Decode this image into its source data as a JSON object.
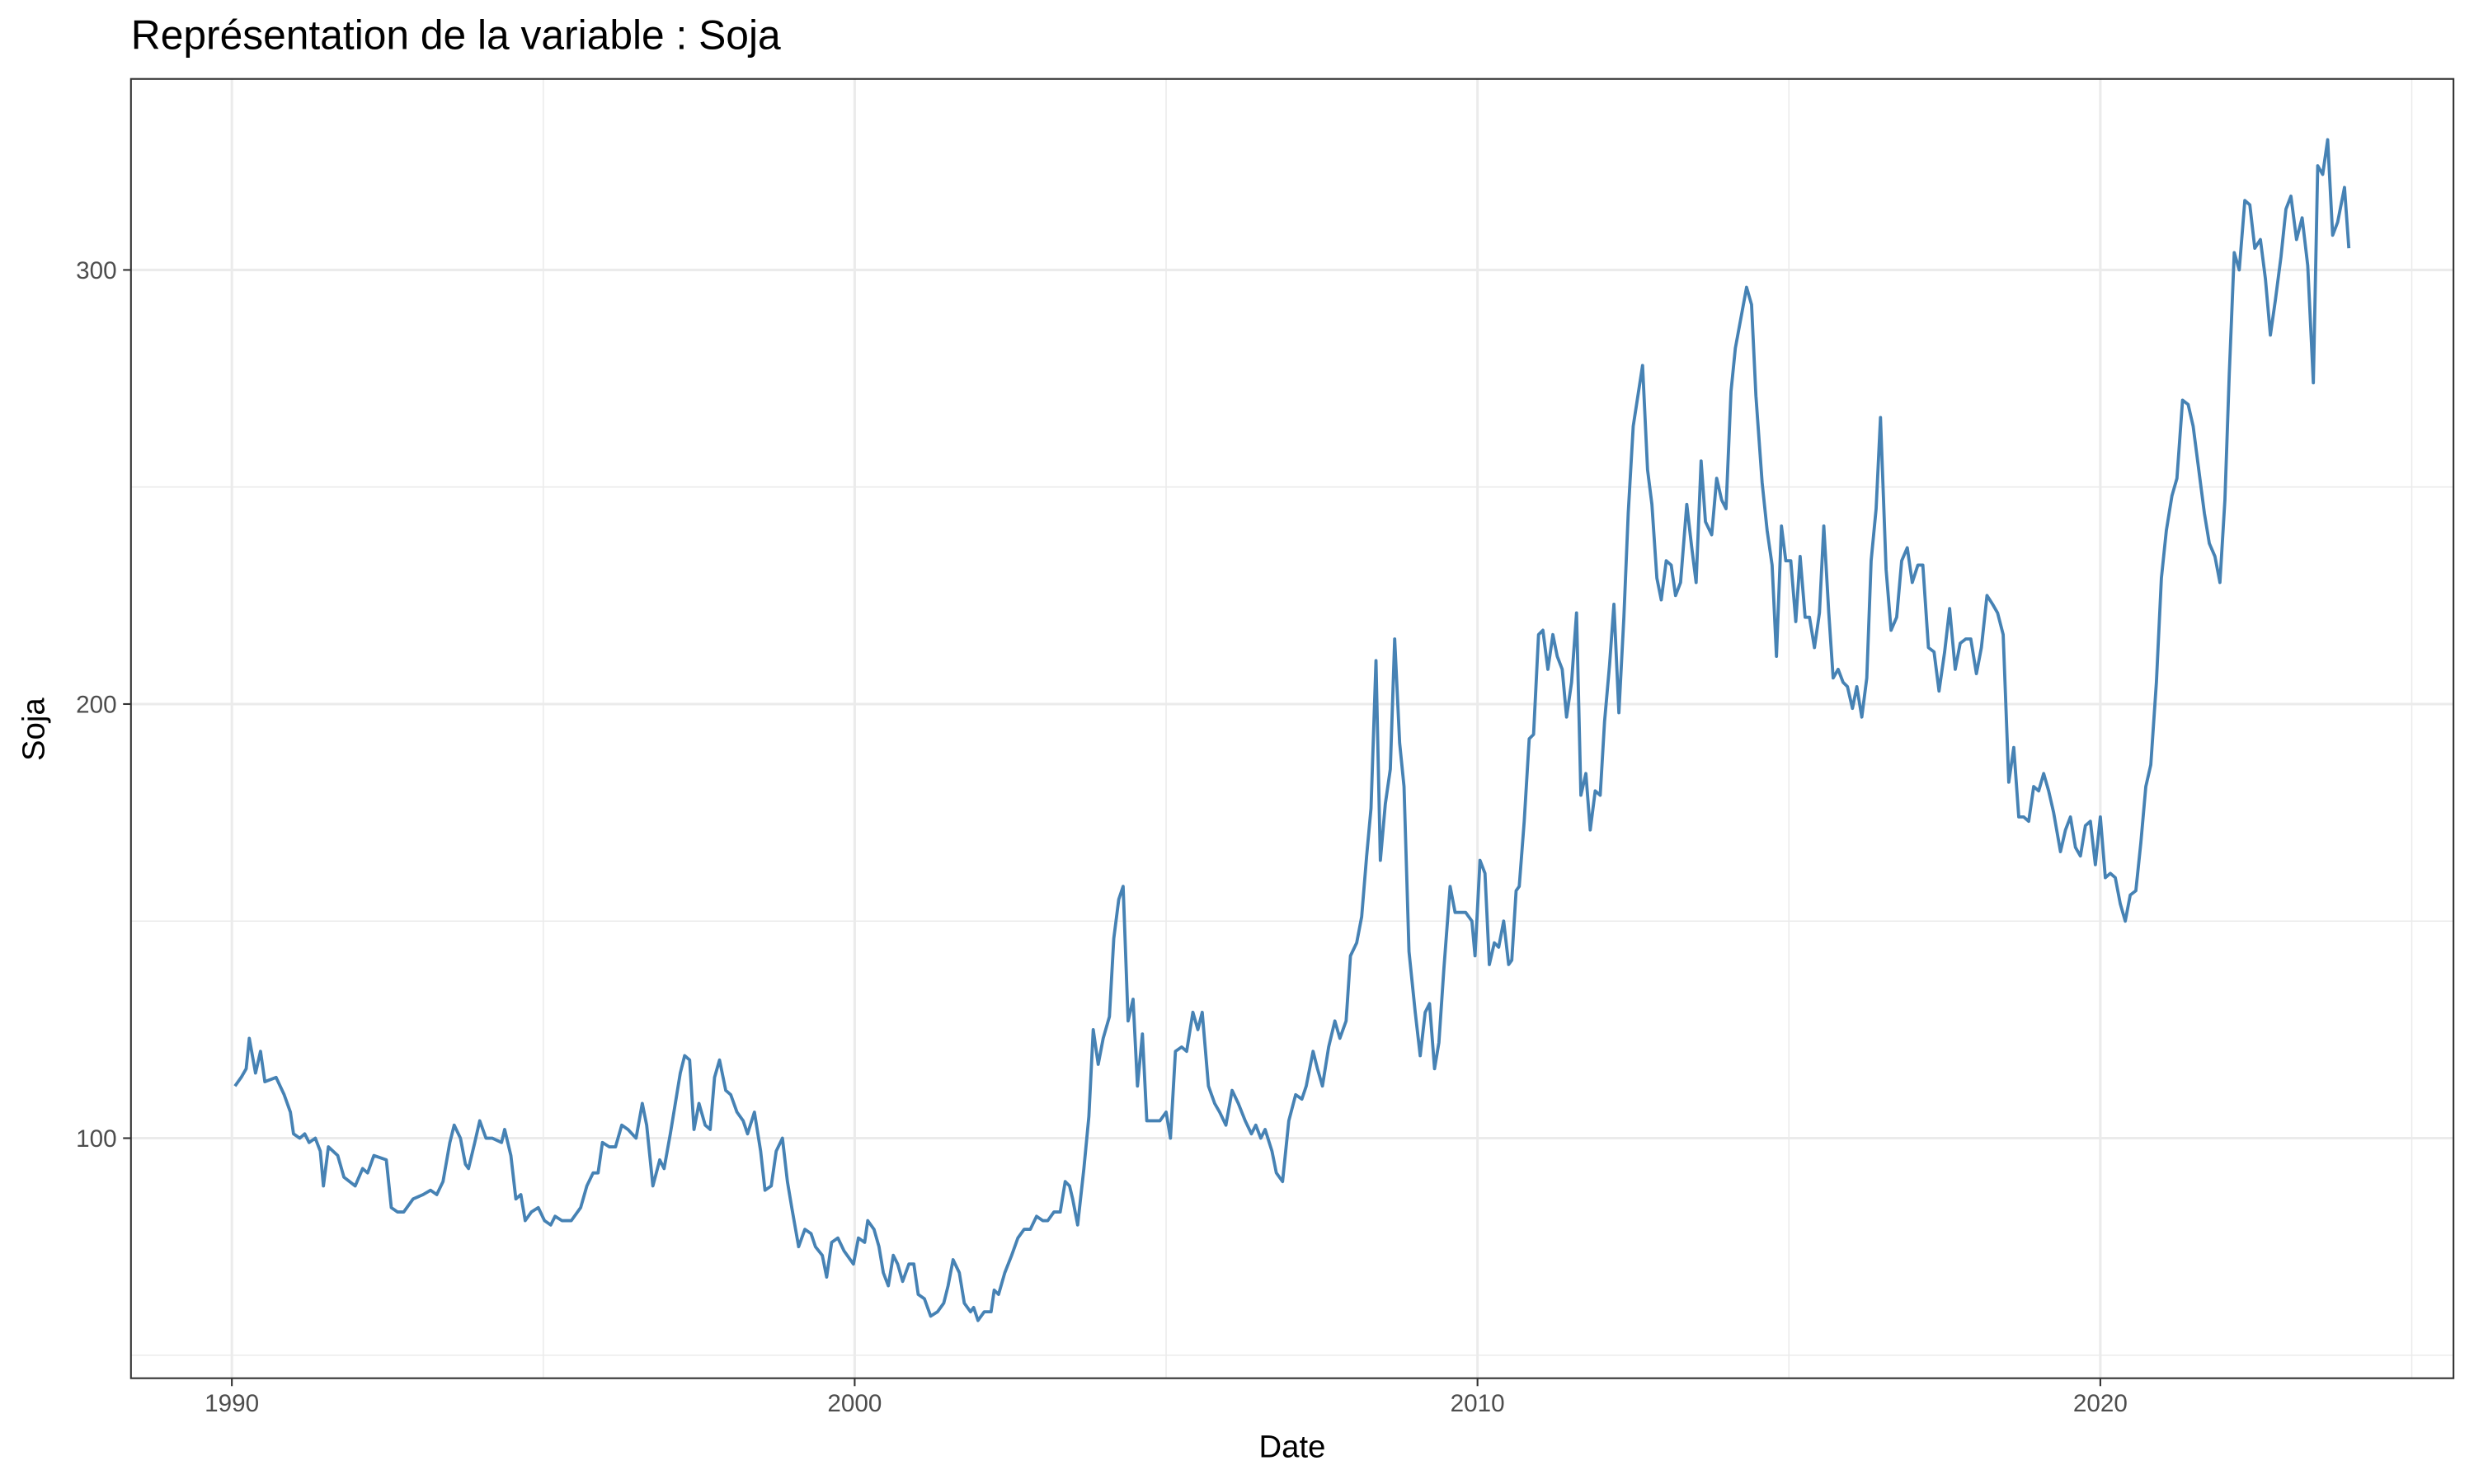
{
  "chart_data": {
    "type": "line",
    "title": "Représentation de la variable :  Soja",
    "xlabel": "Date",
    "ylabel": "Soja",
    "color": "#4682b4",
    "xlim": [
      1988.38,
      2025.67
    ],
    "xticks": [
      1990,
      2000,
      2010,
      2020
    ],
    "xminorticks": [
      1995,
      2005,
      2015,
      2025
    ],
    "ylim": [
      44.7,
      344
    ],
    "yticks": [
      100,
      200,
      300
    ],
    "yminorticks": [
      50,
      150,
      250
    ],
    "grid": true,
    "x": [
      1990.05,
      1990.15,
      1990.23,
      1990.28,
      1990.38,
      1990.46,
      1990.53,
      1990.71,
      1990.84,
      1990.94,
      1990.99,
      1991.09,
      1991.17,
      1991.24,
      1991.34,
      1991.42,
      1991.47,
      1991.55,
      1991.7,
      1991.8,
      1991.98,
      1992.1,
      1992.18,
      1992.28,
      1992.48,
      1992.56,
      1992.66,
      1992.76,
      1992.91,
      1993.07,
      1993.19,
      1993.29,
      1993.39,
      1993.5,
      1993.57,
      1993.67,
      1993.75,
      1993.8,
      1993.9,
      1993.98,
      1994.08,
      1994.18,
      1994.33,
      1994.38,
      1994.48,
      1994.56,
      1994.64,
      1994.71,
      1994.81,
      1994.92,
      1995.02,
      1995.12,
      1995.19,
      1995.3,
      1995.45,
      1995.6,
      1995.7,
      1995.8,
      1995.88,
      1995.95,
      1996.06,
      1996.16,
      1996.26,
      1996.36,
      1996.49,
      1996.59,
      1996.66,
      1996.76,
      1996.87,
      1996.94,
      1997.04,
      1997.12,
      1997.2,
      1997.27,
      1997.35,
      1997.42,
      1997.5,
      1997.6,
      1997.68,
      1997.75,
      1997.83,
      1997.93,
      1998.01,
      1998.11,
      1998.21,
      1998.28,
      1998.39,
      1998.49,
      1998.56,
      1998.66,
      1998.74,
      1998.84,
      1998.92,
      1998.99,
      1999.1,
      1999.2,
      1999.3,
      1999.37,
      1999.48,
      1999.55,
      1999.63,
      1999.73,
      1999.83,
      1999.93,
      1999.98,
      2000.06,
      2000.16,
      2000.21,
      2000.31,
      2000.39,
      2000.46,
      2000.54,
      2000.62,
      2000.69,
      2000.77,
      2000.87,
      2000.95,
      2001.02,
      2001.12,
      2001.22,
      2001.33,
      2001.43,
      2001.5,
      2001.58,
      2001.68,
      2001.76,
      2001.86,
      2001.91,
      2001.98,
      2002.08,
      2002.19,
      2002.24,
      2002.31,
      2002.41,
      2002.52,
      2002.62,
      2002.72,
      2002.82,
      2002.92,
      2003.02,
      2003.1,
      2003.2,
      2003.3,
      2003.38,
      2003.45,
      2003.5,
      2003.58,
      2003.68,
      2003.76,
      2003.83,
      2003.91,
      2003.99,
      2004.09,
      2004.16,
      2004.24,
      2004.31,
      2004.39,
      2004.47,
      2004.54,
      2004.62,
      2004.69,
      2004.8,
      2004.9,
      2005,
      2005.07,
      2005.15,
      2005.25,
      2005.33,
      2005.43,
      2005.51,
      2005.58,
      2005.68,
      2005.78,
      2005.86,
      2005.96,
      2006.06,
      2006.16,
      2006.27,
      2006.37,
      2006.44,
      2006.52,
      2006.59,
      2006.7,
      2006.77,
      2006.87,
      2006.97,
      2007.08,
      2007.18,
      2007.25,
      2007.36,
      2007.43,
      2007.51,
      2007.61,
      2007.71,
      2007.79,
      2007.89,
      2007.96,
      2008.06,
      2008.14,
      2008.22,
      2008.29,
      2008.37,
      2008.44,
      2008.52,
      2008.6,
      2008.67,
      2008.75,
      2008.82,
      2008.9,
      2009,
      2009.08,
      2009.16,
      2009.23,
      2009.31,
      2009.38,
      2009.46,
      2009.56,
      2009.64,
      2009.74,
      2009.81,
      2009.91,
      2009.96,
      2010.04,
      2010.12,
      2010.19,
      2010.27,
      2010.34,
      2010.42,
      2010.5,
      2010.55,
      2010.62,
      2010.67,
      2010.75,
      2010.83,
      2010.9,
      2010.98,
      2011.05,
      2011.13,
      2011.21,
      2011.28,
      2011.36,
      2011.43,
      2011.51,
      2011.59,
      2011.66,
      2011.74,
      2011.81,
      2011.89,
      2011.97,
      2012.04,
      2012.12,
      2012.19,
      2012.27,
      2012.35,
      2012.42,
      2012.5,
      2012.65,
      2012.73,
      2012.8,
      2012.88,
      2012.95,
      2013.03,
      2013.11,
      2013.18,
      2013.26,
      2013.36,
      2013.44,
      2013.51,
      2013.59,
      2013.66,
      2013.76,
      2013.84,
      2013.92,
      2013.99,
      2014.07,
      2014.14,
      2014.32,
      2014.4,
      2014.47,
      2014.57,
      2014.65,
      2014.73,
      2014.8,
      2014.88,
      2014.95,
      2015.03,
      2015.11,
      2015.18,
      2015.26,
      2015.33,
      2015.41,
      2015.49,
      2015.56,
      2015.64,
      2015.71,
      2015.79,
      2015.87,
      2015.94,
      2016.02,
      2016.09,
      2016.17,
      2016.25,
      2016.32,
      2016.4,
      2016.47,
      2016.56,
      2016.64,
      2016.73,
      2016.81,
      2016.9,
      2016.98,
      2017.07,
      2017.15,
      2017.24,
      2017.33,
      2017.41,
      2017.5,
      2017.58,
      2017.67,
      2017.75,
      2017.84,
      2017.92,
      2018.01,
      2018.09,
      2018.18,
      2018.27,
      2018.35,
      2018.44,
      2018.53,
      2018.61,
      2018.69,
      2018.77,
      2018.85,
      2018.93,
      2019.01,
      2019.09,
      2019.17,
      2019.25,
      2019.36,
      2019.44,
      2019.52,
      2019.6,
      2019.68,
      2019.76,
      2019.84,
      2019.92,
      2020,
      2020.08,
      2020.16,
      2020.24,
      2020.32,
      2020.4,
      2020.48,
      2020.57,
      2020.65,
      2020.73,
      2020.81,
      2020.9,
      2020.98,
      2021.06,
      2021.15,
      2021.23,
      2021.32,
      2021.41,
      2021.49,
      2021.58,
      2021.67,
      2021.75,
      2021.84,
      2021.92,
      2022,
      2022.07,
      2022.15,
      2022.23,
      2022.32,
      2022.4,
      2022.48,
      2022.57,
      2022.65,
      2022.73,
      2022.81,
      2022.9,
      2022.98,
      2023.06,
      2023.15,
      2023.24,
      2023.33,
      2023.42,
      2023.49,
      2023.57,
      2023.65,
      2023.73,
      2023.81,
      2023.92,
      2023.99
    ],
    "values": [
      112,
      114,
      116,
      123,
      115,
      120,
      113,
      114,
      110,
      106,
      101,
      100,
      101,
      99,
      100,
      97,
      89,
      98,
      96,
      91,
      89,
      93,
      92,
      96,
      95,
      84,
      83,
      83,
      86,
      87,
      88,
      87,
      90,
      99,
      103,
      100,
      94,
      93,
      99,
      104,
      100,
      100,
      99,
      102,
      96,
      86,
      87,
      81,
      83,
      84,
      81,
      80,
      82,
      81,
      81,
      84,
      89,
      92,
      92,
      99,
      98,
      98,
      103,
      102,
      100,
      108,
      103,
      89,
      95,
      93,
      101,
      108,
      115,
      119,
      118,
      102,
      108,
      103,
      102,
      114,
      118,
      111,
      110,
      106,
      104,
      101,
      106,
      97,
      88,
      89,
      97,
      100,
      90,
      84,
      75,
      79,
      78,
      75,
      73,
      68,
      76,
      77,
      74,
      72,
      71,
      77,
      76,
      81,
      79,
      75,
      69,
      66,
      73,
      71,
      67,
      71,
      71,
      64,
      63,
      59,
      60,
      62,
      66,
      72,
      69,
      62,
      60,
      61,
      58,
      60,
      60,
      65,
      64,
      69,
      73,
      77,
      79,
      79,
      82,
      81,
      81,
      83,
      83,
      90,
      89,
      86,
      80,
      93,
      105,
      125,
      117,
      123,
      128,
      146,
      155,
      158,
      127,
      132,
      112,
      124,
      104,
      104,
      104,
      106,
      100,
      120,
      121,
      120,
      129,
      125,
      129,
      112,
      108,
      106,
      103,
      111,
      108,
      104,
      101,
      103,
      100,
      102,
      97,
      92,
      90,
      104,
      110,
      109,
      112,
      120,
      116,
      112,
      121,
      127,
      123,
      127,
      142,
      145,
      151,
      165,
      176,
      210,
      164,
      177,
      185,
      215,
      191,
      181,
      143,
      129,
      119,
      129,
      131,
      116,
      122,
      139,
      158,
      152,
      152,
      152,
      150,
      142,
      164,
      161,
      140,
      145,
      144,
      150,
      140,
      141,
      157,
      158,
      173,
      192,
      193,
      216,
      217,
      208,
      216,
      211,
      208,
      197,
      205,
      221,
      179,
      184,
      171,
      180,
      179,
      196,
      209,
      223,
      198,
      220,
      244,
      264,
      278,
      254,
      246,
      229,
      224,
      233,
      232,
      225,
      228,
      246,
      236,
      228,
      256,
      242,
      239,
      252,
      247,
      245,
      272,
      282,
      296,
      292,
      271,
      251,
      240,
      232,
      211,
      241,
      233,
      233,
      219,
      234,
      220,
      220,
      213,
      221,
      241,
      221,
      206,
      208,
      205,
      204,
      199,
      204,
      197,
      206,
      233,
      245,
      266,
      231,
      217,
      220,
      233,
      236,
      228,
      232,
      232,
      213,
      212,
      203,
      212,
      222,
      208,
      214,
      215,
      215,
      207,
      213,
      225,
      223,
      221,
      216,
      182,
      190,
      174,
      174,
      173,
      181,
      180,
      184,
      180,
      175,
      166,
      171,
      174,
      167,
      165,
      172,
      173,
      163,
      174,
      160,
      161,
      160,
      154,
      150,
      156,
      157,
      168,
      181,
      186,
      205,
      229,
      240,
      248,
      252,
      270,
      269,
      264,
      254,
      244,
      237,
      234,
      228,
      247,
      276,
      304,
      300,
      316,
      315,
      305,
      307,
      298,
      285,
      293,
      303,
      314,
      317,
      307,
      312,
      301,
      274,
      324,
      322,
      330,
      308,
      311,
      319,
      305
    ]
  }
}
